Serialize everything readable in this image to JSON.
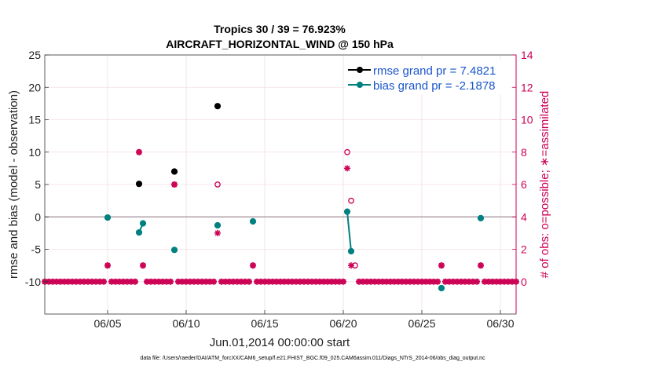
{
  "chart_data": {
    "type": "scatter",
    "title_line1": "Tropics 30 / 39 = 76.923%",
    "title_line2": "AIRCRAFT_HORIZONTAL_WIND @ 150 hPa",
    "xlabel": "Jun.01,2014 00:00:00 start",
    "ylabel_left": "rmse and bias (model - observation)",
    "ylabel_right": "# of obs: o=possible; ∗=assimilated",
    "footer": "data file: /Users/raeder/DAI/ATM_forcXX/CAM6_setup/f.e21.FHIST_BGC.f09_025.CAM6assim.011/Diags_NTrS_2014-06/obs_diag_output.nc",
    "xlim": [
      1.0,
      31.0
    ],
    "ylim_left": [
      -15,
      25
    ],
    "ylim_right": [
      -2,
      14
    ],
    "x_ticks": [
      5,
      10,
      15,
      20,
      25,
      30
    ],
    "x_tick_labels": [
      "06/05",
      "06/10",
      "06/15",
      "06/20",
      "06/25",
      "06/30"
    ],
    "left_ticks": [
      -10,
      -5,
      0,
      5,
      10,
      15,
      20,
      25
    ],
    "left_tick_labels": [
      "-10",
      "-5",
      "0",
      "5",
      "10",
      "15",
      "20",
      "25"
    ],
    "right_ticks": [
      0,
      2,
      4,
      6,
      8,
      10,
      12,
      14
    ],
    "right_tick_labels": [
      "0",
      "2",
      "4",
      "6",
      "8",
      "10",
      "12",
      "14"
    ],
    "zero_line": 0,
    "series": [
      {
        "name": "rmse grand pr = 7.4821",
        "color": "#000000",
        "axis": "left",
        "x": [
          7.0,
          9.25,
          12.0
        ],
        "y": [
          5.1,
          7.0,
          17.1
        ]
      },
      {
        "name": "bias grand pr = -2.1878",
        "color": "#008080",
        "axis": "left",
        "x": [
          5.0,
          7.0,
          7.25,
          9.25,
          12.0,
          14.25,
          20.25,
          20.5,
          26.25,
          28.75
        ],
        "y": [
          -0.1,
          -2.4,
          -1.0,
          -5.1,
          -1.3,
          -0.7,
          0.8,
          -5.3,
          -11.0,
          -0.2
        ],
        "segments": [
          [
            1,
            2
          ],
          [
            6,
            7
          ]
        ]
      }
    ],
    "obs_series": {
      "color": "#cc0055",
      "axis": "right",
      "possible": {
        "x": [
          5.0,
          7.0,
          7.25,
          9.25,
          12.0,
          14.25,
          20.25,
          20.5,
          20.75,
          26.25,
          28.75
        ],
        "y": [
          1,
          8,
          1,
          6,
          6,
          1,
          8,
          5,
          1,
          1,
          1
        ]
      },
      "assimilated": {
        "x": [
          5.0,
          7.0,
          7.25,
          9.25,
          12.0,
          14.25,
          20.25,
          20.5,
          26.25,
          28.75
        ],
        "y": [
          1,
          8,
          1,
          6,
          3,
          1,
          7,
          1,
          1,
          1
        ]
      },
      "zero_x_start": 1.0,
      "zero_x_end": 31.0,
      "zero_x_step": 0.25,
      "zero_gap_x": [
        5.0,
        7.0,
        7.25,
        9.25,
        12.0,
        14.25,
        20.25,
        20.5,
        20.75,
        26.25,
        28.75
      ]
    }
  }
}
